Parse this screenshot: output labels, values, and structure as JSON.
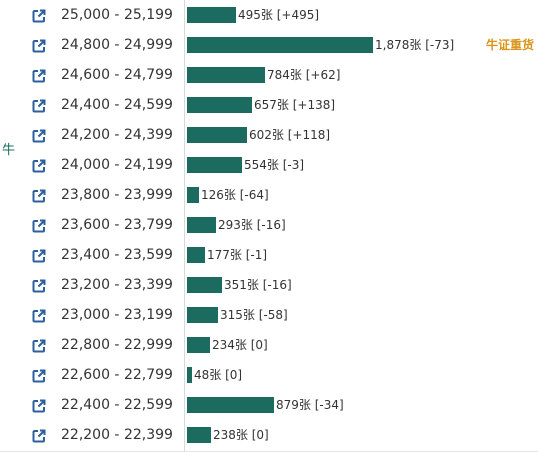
{
  "side_label": "牛",
  "unit": "张",
  "colors": {
    "bar": "#1b6b60",
    "tag": "#d9961a",
    "icon": "#2b5f9e"
  },
  "rows": [
    {
      "range": "25,000 - 25,199",
      "count": 495,
      "count_text": "495张",
      "change": "[+495]",
      "tag": ""
    },
    {
      "range": "24,800 - 24,999",
      "count": 1878,
      "count_text": "1,878张",
      "change": "[-73]",
      "tag": "牛证重货"
    },
    {
      "range": "24,600 - 24,799",
      "count": 784,
      "count_text": "784张",
      "change": "[+62]",
      "tag": ""
    },
    {
      "range": "24,400 - 24,599",
      "count": 657,
      "count_text": "657张",
      "change": "[+138]",
      "tag": ""
    },
    {
      "range": "24,200 - 24,399",
      "count": 602,
      "count_text": "602张",
      "change": "[+118]",
      "tag": ""
    },
    {
      "range": "24,000 - 24,199",
      "count": 554,
      "count_text": "554张",
      "change": "[-3]",
      "tag": ""
    },
    {
      "range": "23,800 - 23,999",
      "count": 126,
      "count_text": "126张",
      "change": "[-64]",
      "tag": ""
    },
    {
      "range": "23,600 - 23,799",
      "count": 293,
      "count_text": "293张",
      "change": "[-16]",
      "tag": ""
    },
    {
      "range": "23,400 - 23,599",
      "count": 177,
      "count_text": "177张",
      "change": "[-1]",
      "tag": ""
    },
    {
      "range": "23,200 - 23,399",
      "count": 351,
      "count_text": "351张",
      "change": "[-16]",
      "tag": ""
    },
    {
      "range": "23,000 - 23,199",
      "count": 315,
      "count_text": "315张",
      "change": "[-58]",
      "tag": ""
    },
    {
      "range": "22,800 - 22,999",
      "count": 234,
      "count_text": "234张",
      "change": "[0]",
      "tag": ""
    },
    {
      "range": "22,600 - 22,799",
      "count": 48,
      "count_text": "48张",
      "change": "[0]",
      "tag": ""
    },
    {
      "range": "22,400 - 22,599",
      "count": 879,
      "count_text": "879张",
      "change": "[-34]",
      "tag": ""
    },
    {
      "range": "22,200 - 22,399",
      "count": 238,
      "count_text": "238张",
      "change": "[0]",
      "tag": ""
    }
  ],
  "icon_name": "external-link-icon"
}
